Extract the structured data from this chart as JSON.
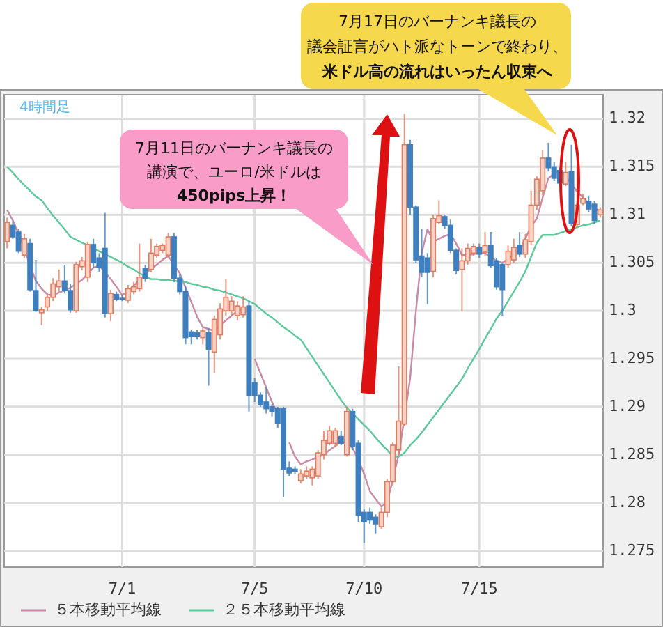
{
  "chart_data": {
    "type": "candlestick",
    "categories": [
      null,
      null,
      null,
      null,
      null,
      null,
      null,
      null,
      null,
      null,
      null,
      null,
      null,
      null,
      null,
      null,
      null,
      null,
      null,
      null,
      "7/1",
      null,
      null,
      null,
      null,
      null,
      null,
      null,
      null,
      null,
      null,
      null,
      null,
      null,
      null,
      null,
      null,
      null,
      null,
      null,
      null,
      null,
      null,
      "7/5",
      null,
      null,
      null,
      null,
      null,
      null,
      null,
      null,
      null,
      null,
      null,
      null,
      null,
      null,
      null,
      null,
      null,
      null,
      "7/10",
      null,
      null,
      null,
      null,
      null,
      null,
      null,
      null,
      null,
      null,
      null,
      null,
      null,
      null,
      null,
      null,
      null,
      null,
      null,
      "7/15",
      null,
      null,
      null,
      null,
      null,
      null,
      null,
      null,
      null,
      null,
      null,
      null,
      null,
      null,
      null,
      null,
      null,
      null,
      null,
      null,
      null
    ],
    "ohlc": [
      [
        1.3072,
        1.3097,
        1.3065,
        1.3092
      ],
      [
        1.3089,
        1.3093,
        1.3075,
        1.3077
      ],
      [
        1.3082,
        1.3085,
        1.306,
        1.3062
      ],
      [
        1.3058,
        1.308,
        1.3055,
        1.3075
      ],
      [
        1.307,
        1.3075,
        1.302,
        1.3022
      ],
      [
        1.3021,
        1.3053,
        1.2999,
        1.3
      ],
      [
        1.2998,
        1.3004,
        1.2985,
        1.3001
      ],
      [
        1.3004,
        1.3018,
        1.3,
        1.3014
      ],
      [
        1.3014,
        1.3034,
        1.301,
        1.3028
      ],
      [
        1.3025,
        1.3043,
        1.302,
        1.3031
      ],
      [
        1.3031,
        1.3048,
        1.3018,
        1.3021
      ],
      [
        1.3021,
        1.3028,
        1.2998,
        1.3001
      ],
      [
        1.3,
        1.3051,
        1.2998,
        1.3048
      ],
      [
        1.3046,
        1.3056,
        1.3042,
        1.3052
      ],
      [
        1.3035,
        1.3072,
        1.303,
        1.3069
      ],
      [
        1.3069,
        1.3075,
        1.3045,
        1.305
      ],
      [
        1.3055,
        1.306,
        1.304,
        1.3045
      ],
      [
        1.3065,
        1.3102,
        1.2993,
        1.2997
      ],
      [
        1.2997,
        1.3022,
        1.2989,
        1.3018
      ],
      [
        1.3017,
        1.302,
        1.301,
        1.3012
      ],
      [
        1.3013,
        1.3016,
        1.301,
        1.3012
      ],
      [
        1.3011,
        1.3027,
        1.3008,
        1.3023
      ],
      [
        1.302,
        1.303,
        1.3017,
        1.3025
      ],
      [
        1.3023,
        1.307,
        1.302,
        1.3035
      ],
      [
        1.3044,
        1.3048,
        1.303,
        1.3034
      ],
      [
        1.3043,
        1.3075,
        1.304,
        1.306
      ],
      [
        1.3058,
        1.307,
        1.3055,
        1.3067
      ],
      [
        1.3063,
        1.307,
        1.306,
        1.3068
      ],
      [
        1.3058,
        1.3081,
        1.3055,
        1.3077
      ],
      [
        1.3077,
        1.3081,
        1.303,
        1.3034
      ],
      [
        1.3034,
        1.3038,
        1.3017,
        1.302
      ],
      [
        1.302,
        1.3025,
        1.2965,
        1.2972
      ],
      [
        1.2978,
        1.298,
        1.2965,
        1.2973
      ],
      [
        1.2977,
        1.298,
        1.297,
        1.2973
      ],
      [
        1.2972,
        1.2982,
        1.2965,
        1.2979
      ],
      [
        1.2977,
        1.2982,
        1.2922,
        1.296
      ],
      [
        1.2957,
        1.2995,
        1.2935,
        1.2991
      ],
      [
        1.2975,
        1.3008,
        1.297,
        1.3002
      ],
      [
        1.3,
        1.3033,
        1.2995,
        1.3014
      ],
      [
        1.3,
        1.3015,
        1.2995,
        1.301
      ],
      [
        1.2995,
        1.301,
        1.299,
        1.3005
      ],
      [
        1.2996,
        1.3015,
        1.2993,
        1.3004
      ],
      [
        1.3005,
        1.301,
        1.2895,
        1.2912
      ],
      [
        1.2925,
        1.293,
        1.2905,
        1.2912
      ],
      [
        1.2912,
        1.2915,
        1.29,
        1.2902
      ],
      [
        1.2905,
        1.292,
        1.2893,
        1.2898
      ],
      [
        1.29,
        1.2903,
        1.289,
        1.2895
      ],
      [
        1.2898,
        1.29,
        1.2878,
        1.2883
      ],
      [
        1.2898,
        1.29,
        1.2806,
        1.2835
      ],
      [
        1.2836,
        1.2843,
        1.2828,
        1.2831
      ],
      [
        1.2835,
        1.2838,
        1.283,
        1.2833
      ],
      [
        1.2823,
        1.2835,
        1.282,
        1.283
      ],
      [
        1.2828,
        1.2838,
        1.2825,
        1.2833
      ],
      [
        1.2826,
        1.2838,
        1.2818,
        1.2835
      ],
      [
        1.2828,
        1.2855,
        1.2825,
        1.2852
      ],
      [
        1.285,
        1.2875,
        1.2845,
        1.2865
      ],
      [
        1.2862,
        1.288,
        1.286,
        1.2875
      ],
      [
        1.2862,
        1.2878,
        1.2858,
        1.2875
      ],
      [
        1.2869,
        1.2875,
        1.286,
        1.2862
      ],
      [
        1.285,
        1.29,
        1.2848,
        1.2895
      ],
      [
        1.2895,
        1.2898,
        1.2855,
        1.2859
      ],
      [
        1.2862,
        1.2865,
        1.278,
        1.2787
      ],
      [
        1.279,
        1.2793,
        1.2758,
        1.278
      ],
      [
        1.279,
        1.2795,
        1.2778,
        1.2782
      ],
      [
        1.2785,
        1.2788,
        1.2768,
        1.2778
      ],
      [
        1.2775,
        1.2795,
        1.2773,
        1.279
      ],
      [
        1.279,
        1.2825,
        1.2785,
        1.2822
      ],
      [
        1.2822,
        1.2863,
        1.2818,
        1.286
      ],
      [
        1.2855,
        1.2942,
        1.285,
        1.2885
      ],
      [
        1.2882,
        1.3205,
        1.288,
        1.3173
      ],
      [
        1.3173,
        1.3178,
        1.31,
        1.3108
      ],
      [
        1.3108,
        1.311,
        1.305,
        1.3053
      ],
      [
        1.3057,
        1.3085,
        1.3035,
        1.304
      ],
      [
        1.3055,
        1.306,
        1.3007,
        1.304
      ],
      [
        1.3041,
        1.31,
        1.3035,
        1.3096
      ],
      [
        1.3092,
        1.3115,
        1.309,
        1.3099
      ],
      [
        1.3098,
        1.31,
        1.3085,
        1.3089
      ],
      [
        1.3089,
        1.3095,
        1.306,
        1.3063
      ],
      [
        1.3063,
        1.3065,
        1.3038,
        1.3042
      ],
      [
        1.3043,
        1.3065,
        1.3,
        1.3052
      ],
      [
        1.3052,
        1.307,
        1.3048,
        1.3065
      ],
      [
        1.306,
        1.307,
        1.3057,
        1.3067
      ],
      [
        1.3066,
        1.307,
        1.3055,
        1.3059
      ],
      [
        1.3061,
        1.3082,
        1.3057,
        1.3068
      ],
      [
        1.3068,
        1.3082,
        1.3045,
        1.3047
      ],
      [
        1.3052,
        1.3055,
        1.3022,
        1.3025
      ],
      [
        1.3048,
        1.305,
        1.2995,
        1.3022
      ],
      [
        1.3048,
        1.3068,
        1.3045,
        1.3062
      ],
      [
        1.3053,
        1.3075,
        1.305,
        1.3066
      ],
      [
        1.3068,
        1.3082,
        1.3056,
        1.3059
      ],
      [
        1.3059,
        1.308,
        1.3055,
        1.3074
      ],
      [
        1.3072,
        1.3125,
        1.3068,
        1.311
      ],
      [
        1.311,
        1.314,
        1.3105,
        1.3137
      ],
      [
        1.3125,
        1.3167,
        1.312,
        1.3159
      ],
      [
        1.3159,
        1.3175,
        1.3145,
        1.3149
      ],
      [
        1.315,
        1.3155,
        1.3135,
        1.3138
      ],
      [
        1.3146,
        1.315,
        1.313,
        1.3133
      ],
      [
        1.3132,
        1.3155,
        1.313,
        1.3144
      ],
      [
        1.3145,
        1.3173,
        1.3088,
        1.3091
      ],
      [
        1.309,
        1.315,
        1.3087,
        1.311
      ],
      [
        1.3112,
        1.3122,
        1.311,
        1.3117
      ],
      [
        1.3114,
        1.312,
        1.3103,
        1.3106
      ],
      [
        1.3111,
        1.3114,
        1.309,
        1.3094
      ],
      [
        1.31,
        1.3108,
        1.3097,
        1.3105
      ]
    ],
    "colors": [
      "#e07a5f",
      "#3d7fbf",
      "#3d7fbf",
      "#e07a5f",
      "#3d7fbf",
      "#3d7fbf",
      "#e07a5f",
      "#e07a5f",
      "#e07a5f",
      "#e07a5f",
      "#3d7fbf",
      "#3d7fbf",
      "#e07a5f",
      "#e07a5f",
      "#e07a5f",
      "#3d7fbf",
      "#3d7fbf",
      "#3d7fbf",
      "#e07a5f",
      "#3d7fbf",
      "#3d7fbf",
      "#e07a5f",
      "#e07a5f",
      "#e07a5f",
      "#3d7fbf",
      "#e07a5f",
      "#e07a5f",
      "#e07a5f",
      "#e07a5f",
      "#3d7fbf",
      "#3d7fbf",
      "#3d7fbf",
      "#3d7fbf",
      "#3d7fbf",
      "#e07a5f",
      "#3d7fbf",
      "#e07a5f",
      "#e07a5f",
      "#e07a5f",
      "#e07a5f",
      "#e07a5f",
      "#e07a5f",
      "#3d7fbf",
      "#3d7fbf",
      "#3d7fbf",
      "#3d7fbf",
      "#3d7fbf",
      "#3d7fbf",
      "#3d7fbf",
      "#3d7fbf",
      "#3d7fbf",
      "#e07a5f",
      "#e07a5f",
      "#e07a5f",
      "#e07a5f",
      "#e07a5f",
      "#e07a5f",
      "#e07a5f",
      "#3d7fbf",
      "#e07a5f",
      "#3d7fbf",
      "#3d7fbf",
      "#3d7fbf",
      "#3d7fbf",
      "#3d7fbf",
      "#e07a5f",
      "#e07a5f",
      "#e07a5f",
      "#e07a5f",
      "#e07a5f",
      "#3d7fbf",
      "#3d7fbf",
      "#3d7fbf",
      "#3d7fbf",
      "#e07a5f",
      "#e07a5f",
      "#3d7fbf",
      "#3d7fbf",
      "#3d7fbf",
      "#e07a5f",
      "#e07a5f",
      "#e07a5f",
      "#3d7fbf",
      "#e07a5f",
      "#3d7fbf",
      "#3d7fbf",
      "#3d7fbf",
      "#e07a5f",
      "#e07a5f",
      "#3d7fbf",
      "#e07a5f",
      "#e07a5f",
      "#e07a5f",
      "#e07a5f",
      "#3d7fbf",
      "#3d7fbf",
      "#3d7fbf",
      "#e07a5f",
      "#3d7fbf",
      "#e07a5f",
      "#e07a5f",
      "#3d7fbf",
      "#3d7fbf",
      "#e07a5f"
    ],
    "series": [
      {
        "name": "５本移動平均線",
        "type": "line",
        "color": "#c88aa6",
        "values": [
          1.3105,
          1.3094,
          1.308,
          1.3065,
          1.3047,
          1.3031,
          1.3023,
          1.3017,
          1.3016,
          1.3019,
          1.3021,
          1.3024,
          1.3028,
          1.3032,
          1.3038,
          1.3045,
          1.3047,
          1.304,
          1.3033,
          1.3025,
          1.3016,
          1.3021,
          1.3026,
          1.3032,
          1.3038,
          1.3044,
          1.3048,
          1.3053,
          1.3057,
          1.3048,
          1.3039,
          1.3024,
          1.3009,
          1.2994,
          1.2983,
          1.2981,
          1.2979,
          1.2985,
          1.299,
          1.2995,
          1.3,
          1.3003,
          null,
          1.295,
          1.2935,
          1.292,
          1.2905,
          1.2893,
          null,
          1.2863,
          1.2848,
          1.284,
          1.2843,
          1.2845,
          1.2848,
          1.285,
          1.2855,
          1.2859,
          1.2864,
          1.2861,
          1.2857,
          1.2845,
          1.283,
          1.2812,
          1.2804,
          1.2796,
          1.28,
          1.2825,
          1.285,
          1.2888,
          1.293,
          1.3,
          1.306,
          1.3085,
          1.3072,
          1.3075,
          1.3078,
          1.308,
          1.307,
          1.3058,
          1.3058,
          1.3059,
          1.306,
          1.306,
          1.3056,
          1.3052,
          1.305,
          1.3054,
          1.3058,
          1.3062,
          1.3075,
          1.3088,
          1.3096,
          1.3118,
          1.3138,
          1.3143,
          1.3146,
          1.314,
          1.3132,
          1.3124,
          1.3118,
          1.3112,
          1.3107,
          1.3103
        ]
      },
      {
        "name": "２５本移動平均線",
        "type": "line",
        "color": "#5cc99a",
        "values": [
          1.315,
          1.3144,
          1.3137,
          1.3131,
          1.3125,
          1.3119,
          1.3115,
          1.3107,
          1.3099,
          1.3092,
          1.3085,
          1.3077,
          1.3074,
          1.3071,
          1.3068,
          1.3065,
          1.3062,
          1.3059,
          1.3056,
          1.3053,
          1.305,
          1.3046,
          1.3043,
          1.3039,
          1.3036,
          1.3033,
          1.3033,
          1.3032,
          1.3032,
          1.3031,
          1.3031,
          1.303,
          1.3028,
          1.3027,
          1.3025,
          1.3024,
          1.3022,
          1.3021,
          1.3019,
          1.3017,
          1.3015,
          1.3013,
          1.301,
          1.3007,
          1.3002,
          1.2997,
          1.2993,
          1.2988,
          1.2983,
          1.2979,
          1.2974,
          1.297,
          1.2961,
          1.2952,
          1.2943,
          1.2934,
          1.2925,
          1.2916,
          1.2907,
          1.2899,
          1.2893,
          1.2887,
          1.2881,
          1.2875,
          1.2868,
          1.2861,
          1.2855,
          1.2848,
          1.2848,
          1.2852,
          1.286,
          1.2866,
          1.2873,
          1.2881,
          1.2889,
          1.2897,
          1.2905,
          1.2913,
          1.2921,
          1.2929,
          1.294,
          1.295,
          1.296,
          1.2971,
          1.2981,
          1.2992,
          1.3,
          1.301,
          1.302,
          1.303,
          1.3041,
          1.3056,
          1.3071,
          1.3079,
          1.3079,
          1.3079,
          1.3081,
          1.3083,
          1.3085,
          1.3087,
          1.3089,
          1.309,
          1.3092,
          1.3094
        ]
      }
    ],
    "ylim": [
      1.2733,
      1.3225
    ],
    "yticks": [
      1.275,
      1.28,
      1.285,
      1.29,
      1.295,
      1.3,
      1.305,
      1.31,
      1.315,
      1.32
    ],
    "grid": true,
    "legend": "bottom",
    "annotations": [
      "4時間足",
      "7月11日のバーナンキ議長の",
      "講演で、ユーロ/米ドルは",
      "450pips上昇！",
      "7月17日のバーナンキ議長の",
      "議会証言がハト派なトーンで終わり、",
      "米ドル高の流れはいったん収束へ"
    ]
  }
}
